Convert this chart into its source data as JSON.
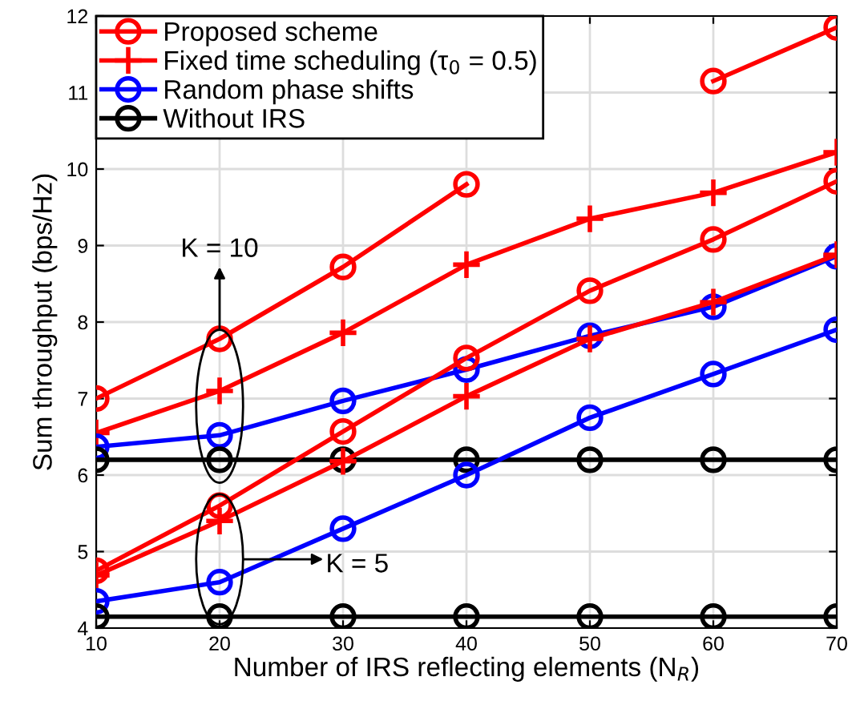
{
  "chart_data": {
    "type": "line",
    "xlabel": "Number of IRS reflecting elements (N$_{R}$)",
    "ylabel": "Sum throughput (bps/Hz)",
    "x": [
      10,
      20,
      30,
      40,
      50,
      60,
      70
    ],
    "series": [
      {
        "name": "Proposed scheme",
        "color": "#ff0000",
        "marker": "circle",
        "values": [
          7.0,
          7.78,
          8.72,
          9.8,
          null,
          11.15,
          11.85
        ]
      },
      {
        "name": "Fixed time scheduling (τ$_{0}$ = 0.5)",
        "color": "#ff0000",
        "marker": "cross",
        "values": [
          6.55,
          7.1,
          7.86,
          8.75,
          9.35,
          9.69,
          10.22
        ]
      },
      {
        "name": "Random phase shifts",
        "color": "#0000ff",
        "marker": "circle",
        "values": [
          6.37,
          6.52,
          6.97,
          7.38,
          7.82,
          8.2,
          8.86
        ]
      },
      {
        "name": "Without IRS",
        "color": "#000000",
        "marker": "circle",
        "values": [
          6.2,
          6.2,
          6.2,
          6.2,
          6.2,
          6.2,
          6.2
        ]
      },
      {
        "color": "#ff0000",
        "marker": "circle",
        "values": [
          4.75,
          5.6,
          6.57,
          7.53,
          8.41,
          9.08,
          9.84
        ]
      },
      {
        "color": "#ff0000",
        "marker": "cross",
        "values": [
          4.69,
          5.4,
          6.18,
          7.03,
          7.78,
          8.26,
          8.88
        ]
      },
      {
        "color": "#0000ff",
        "marker": "circle",
        "values": [
          4.35,
          4.6,
          5.3,
          6.0,
          6.75,
          7.32,
          7.9
        ]
      },
      {
        "color": "#000000",
        "marker": "circle",
        "values": [
          4.15,
          4.15,
          4.15,
          4.15,
          4.15,
          4.15,
          4.15
        ]
      }
    ],
    "xlim": [
      10,
      70
    ],
    "xticks": [
      10,
      20,
      30,
      40,
      50,
      60,
      70
    ],
    "ylim": [
      4,
      12
    ],
    "yticks": [
      4,
      5,
      6,
      7,
      8,
      9,
      10,
      11,
      12
    ],
    "grid": true,
    "legend": "top left",
    "line_style": "solid",
    "annotations": [
      "K = 10",
      "K = 5"
    ]
  }
}
